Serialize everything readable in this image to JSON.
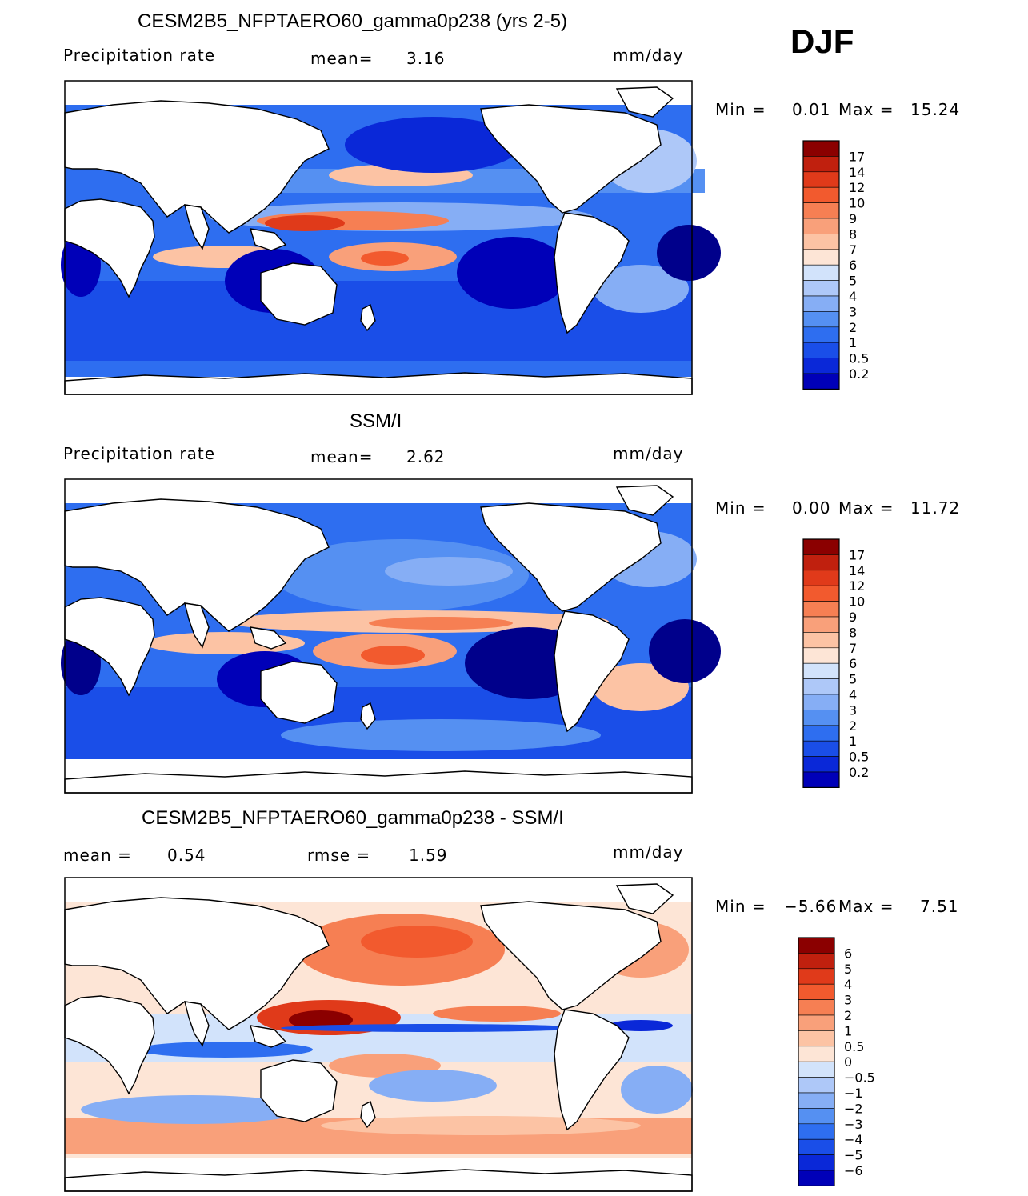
{
  "season": "DJF",
  "colors": {
    "abs_scale": [
      "#00008b",
      "#0000b8",
      "#0a28d8",
      "#1a4ee8",
      "#2e6ef0",
      "#5590f2",
      "#86aef5",
      "#aec8f8",
      "#d2e3fb",
      "#fde5d6",
      "#fcc3a4",
      "#f9a07a",
      "#f67f53",
      "#f25a2e",
      "#e03a1a",
      "#c0200e",
      "#8b0000"
    ],
    "diff_scale": [
      "#00008b",
      "#0000b8",
      "#0a28d8",
      "#1a4ee8",
      "#2e6ef0",
      "#5590f2",
      "#86aef5",
      "#aec8f8",
      "#d2e3fb",
      "#fde5d6",
      "#fcc3a4",
      "#f9a07a",
      "#f67f53",
      "#f25a2e",
      "#e03a1a",
      "#c0200e",
      "#8b0000"
    ],
    "land": "#ffffff",
    "missing": "#ffffff"
  },
  "panels": [
    {
      "title": "CESM2B5_NFPTAERO60_gamma0p238 (yrs 2-5)",
      "left_label": "Precipitation rate",
      "center_label": "mean=",
      "center_value": "3.16",
      "units": "mm/day",
      "min_label": "Min =",
      "min_value": "0.01",
      "max_label": "Max =",
      "max_value": "15.24",
      "colorbar_ticks": [
        "17",
        "14",
        "12",
        "10",
        "9",
        "8",
        "7",
        "6",
        "5",
        "4",
        "3",
        "2",
        "1",
        "0.5",
        "0.2"
      ],
      "map_description": "model precipitation"
    },
    {
      "title": "SSM/I",
      "left_label": "Precipitation rate",
      "center_label": "mean=",
      "center_value": "2.62",
      "units": "mm/day",
      "min_label": "Min =",
      "min_value": "0.00",
      "max_label": "Max =",
      "max_value": "11.72",
      "colorbar_ticks": [
        "17",
        "14",
        "12",
        "10",
        "9",
        "8",
        "7",
        "6",
        "5",
        "4",
        "3",
        "2",
        "1",
        "0.5",
        "0.2"
      ],
      "map_description": "observed precipitation"
    },
    {
      "title": "CESM2B5_NFPTAERO60_gamma0p238 - SSM/I",
      "left_label": "mean =",
      "left_value": "0.54",
      "center_label": "rmse =",
      "center_value": "1.59",
      "units": "mm/day",
      "min_label": "Min =",
      "min_value": "−5.66",
      "max_label": "Max =",
      "max_value": "7.51",
      "colorbar_ticks": [
        "6",
        "5",
        "4",
        "3",
        "2",
        "1",
        "0.5",
        "0",
        "−0.5",
        "−1",
        "−2",
        "−3",
        "−4",
        "−5",
        "−6"
      ],
      "map_description": "difference"
    }
  ]
}
